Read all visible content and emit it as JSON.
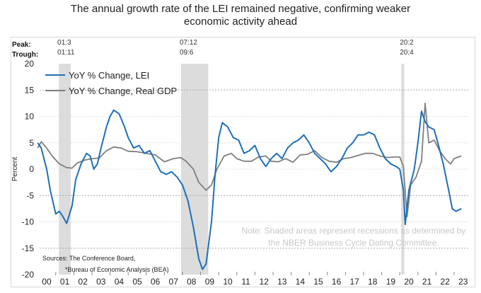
{
  "title_line1": "The annual growth rate of the LEI remained negative, confirming weaker",
  "title_line2": "economic activity ahead",
  "chart_data": {
    "type": "line",
    "ylabel": "Percent",
    "ylim": [
      -20,
      20
    ],
    "yticks": [
      20,
      15,
      10,
      5,
      0,
      -5,
      -10,
      -15,
      -20
    ],
    "xticks": [
      "00",
      "01",
      "02",
      "03",
      "04",
      "05",
      "06",
      "07",
      "08",
      "09",
      "10",
      "11",
      "12",
      "13",
      "14",
      "15",
      "16",
      "17",
      "18",
      "19",
      "20",
      "21",
      "22",
      "23"
    ],
    "peak_label": "Peak:",
    "trough_label": "Trough:",
    "recessions": [
      {
        "peak": "01:3",
        "trough": "01:11",
        "start": 2001.17,
        "end": 2001.83
      },
      {
        "peak": "07:12",
        "trough": "09:6",
        "start": 2007.92,
        "end": 2009.42
      },
      {
        "peak": "20:2",
        "trough": "20:4",
        "start": 2020.08,
        "end": 2020.25
      }
    ],
    "series": [
      {
        "name": "YoY % Change, LEI",
        "color": "#1f6fb8",
        "points": [
          [
            2000.0,
            5
          ],
          [
            2000.2,
            4
          ],
          [
            2000.5,
            0
          ],
          [
            2000.7,
            -4
          ],
          [
            2000.9,
            -7
          ],
          [
            2001.0,
            -8.5
          ],
          [
            2001.2,
            -8
          ],
          [
            2001.4,
            -9
          ],
          [
            2001.6,
            -10.3
          ],
          [
            2001.9,
            -7
          ],
          [
            2002.1,
            -2
          ],
          [
            2002.4,
            1
          ],
          [
            2002.7,
            3
          ],
          [
            2002.9,
            2.5
          ],
          [
            2003.1,
            0
          ],
          [
            2003.3,
            1
          ],
          [
            2003.5,
            4
          ],
          [
            2003.8,
            8
          ],
          [
            2004.0,
            10
          ],
          [
            2004.2,
            11.2
          ],
          [
            2004.5,
            10.5
          ],
          [
            2004.8,
            8
          ],
          [
            2005.0,
            6
          ],
          [
            2005.3,
            4
          ],
          [
            2005.6,
            4.5
          ],
          [
            2005.9,
            3
          ],
          [
            2006.2,
            3.5
          ],
          [
            2006.5,
            1.5
          ],
          [
            2006.8,
            -0.5
          ],
          [
            2007.1,
            -1
          ],
          [
            2007.4,
            -0.5
          ],
          [
            2007.7,
            -1.5
          ],
          [
            2008.0,
            -3
          ],
          [
            2008.3,
            -6
          ],
          [
            2008.6,
            -11
          ],
          [
            2008.9,
            -17
          ],
          [
            2009.1,
            -19
          ],
          [
            2009.3,
            -18
          ],
          [
            2009.6,
            -10
          ],
          [
            2009.8,
            -1
          ],
          [
            2010.0,
            6
          ],
          [
            2010.2,
            8.8
          ],
          [
            2010.5,
            8
          ],
          [
            2010.8,
            6
          ],
          [
            2011.1,
            5.5
          ],
          [
            2011.4,
            3
          ],
          [
            2011.7,
            3.5
          ],
          [
            2012.0,
            4.5
          ],
          [
            2012.3,
            2
          ],
          [
            2012.6,
            0.5
          ],
          [
            2012.9,
            2
          ],
          [
            2013.2,
            3
          ],
          [
            2013.5,
            2
          ],
          [
            2013.8,
            4
          ],
          [
            2014.1,
            5
          ],
          [
            2014.4,
            5.5
          ],
          [
            2014.7,
            6.5
          ],
          [
            2015.0,
            5
          ],
          [
            2015.3,
            3
          ],
          [
            2015.6,
            2
          ],
          [
            2015.9,
            1
          ],
          [
            2016.2,
            -0.5
          ],
          [
            2016.5,
            0.5
          ],
          [
            2016.8,
            2
          ],
          [
            2017.1,
            4
          ],
          [
            2017.4,
            5
          ],
          [
            2017.7,
            6.5
          ],
          [
            2018.0,
            6.5
          ],
          [
            2018.3,
            7
          ],
          [
            2018.6,
            6.5
          ],
          [
            2018.9,
            4
          ],
          [
            2019.2,
            2
          ],
          [
            2019.5,
            1
          ],
          [
            2019.8,
            0.5
          ],
          [
            2020.0,
            0
          ],
          [
            2020.2,
            -4
          ],
          [
            2020.3,
            -10.5
          ],
          [
            2020.5,
            -4
          ],
          [
            2020.8,
            0
          ],
          [
            2021.0,
            5
          ],
          [
            2021.2,
            11
          ],
          [
            2021.4,
            9
          ],
          [
            2021.6,
            8
          ],
          [
            2021.9,
            7.5
          ],
          [
            2022.1,
            5
          ],
          [
            2022.4,
            1
          ],
          [
            2022.7,
            -4
          ],
          [
            2022.9,
            -7.5
          ],
          [
            2023.1,
            -8
          ],
          [
            2023.4,
            -7.5
          ]
        ]
      },
      {
        "name": "YoY % Change, Real GDP",
        "color": "#7f7f7f",
        "points": [
          [
            2000.0,
            4
          ],
          [
            2000.2,
            5.2
          ],
          [
            2000.5,
            4
          ],
          [
            2000.8,
            2.5
          ],
          [
            2001.2,
            1
          ],
          [
            2001.6,
            0.3
          ],
          [
            2001.9,
            0.2
          ],
          [
            2002.2,
            1.2
          ],
          [
            2002.6,
            1.7
          ],
          [
            2003.0,
            2
          ],
          [
            2003.4,
            2.1
          ],
          [
            2003.8,
            3.5
          ],
          [
            2004.2,
            4.2
          ],
          [
            2004.6,
            4
          ],
          [
            2005.0,
            3.4
          ],
          [
            2005.5,
            3.3
          ],
          [
            2006.0,
            3
          ],
          [
            2006.5,
            2.7
          ],
          [
            2007.0,
            1.4
          ],
          [
            2007.5,
            2
          ],
          [
            2007.9,
            2.2
          ],
          [
            2008.2,
            1.5
          ],
          [
            2008.6,
            0
          ],
          [
            2008.9,
            -2.5
          ],
          [
            2009.3,
            -4
          ],
          [
            2009.6,
            -3
          ],
          [
            2009.9,
            0
          ],
          [
            2010.3,
            2.5
          ],
          [
            2010.7,
            3
          ],
          [
            2011.0,
            2
          ],
          [
            2011.4,
            1.5
          ],
          [
            2011.8,
            1.5
          ],
          [
            2012.2,
            2.3
          ],
          [
            2012.6,
            2.5
          ],
          [
            2012.9,
            1.5
          ],
          [
            2013.3,
            1.4
          ],
          [
            2013.7,
            2
          ],
          [
            2014.1,
            1.3
          ],
          [
            2014.5,
            2.7
          ],
          [
            2014.9,
            2.8
          ],
          [
            2015.3,
            3.5
          ],
          [
            2015.7,
            2.2
          ],
          [
            2016.1,
            1.5
          ],
          [
            2016.5,
            1.3
          ],
          [
            2016.9,
            2
          ],
          [
            2017.3,
            2.2
          ],
          [
            2017.7,
            2.6
          ],
          [
            2018.1,
            3
          ],
          [
            2018.5,
            3
          ],
          [
            2018.9,
            2.5
          ],
          [
            2019.3,
            2.2
          ],
          [
            2019.7,
            2.3
          ],
          [
            2020.0,
            2.3
          ],
          [
            2020.2,
            0.5
          ],
          [
            2020.4,
            -9
          ],
          [
            2020.6,
            -3
          ],
          [
            2020.9,
            -1.5
          ],
          [
            2021.2,
            1.5
          ],
          [
            2021.4,
            12.5
          ],
          [
            2021.6,
            5
          ],
          [
            2021.9,
            5.5
          ],
          [
            2022.2,
            3.5
          ],
          [
            2022.5,
            2
          ],
          [
            2022.8,
            1
          ],
          [
            2023.0,
            2
          ],
          [
            2023.4,
            2.5
          ]
        ]
      }
    ],
    "legend": "top-left",
    "note_line1": "Note: Shaded areas represent recessions as determined by",
    "note_line2": "the NBER Business Cycle Dating Committee.",
    "source_line1": "Sources: The Conference Board,",
    "source_line2": "*Bureau of Economic Analysis (BEA)"
  }
}
